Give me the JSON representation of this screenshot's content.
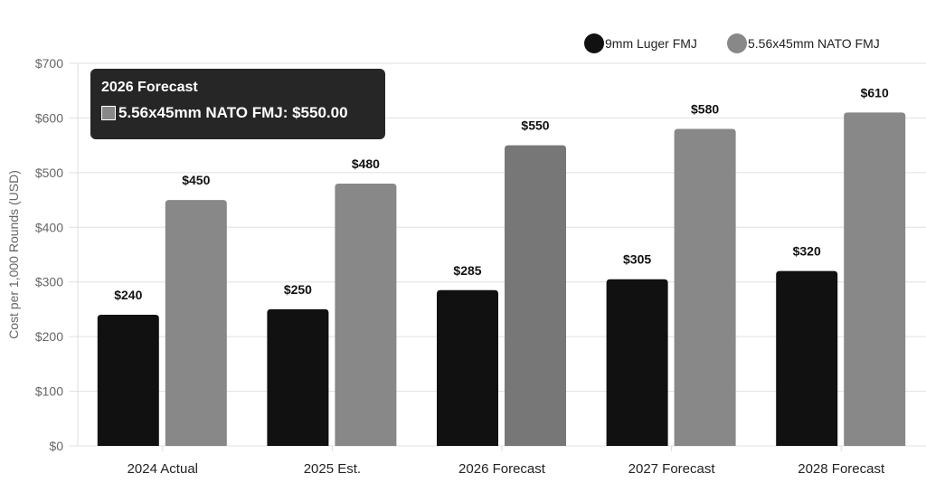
{
  "chart_data": {
    "type": "bar",
    "categories": [
      "2024 Actual",
      "2025 Est.",
      "2026 Forecast",
      "2027 Forecast",
      "2028 Forecast"
    ],
    "series": [
      {
        "name": "9mm Luger FMJ",
        "values": [
          240,
          250,
          285,
          305,
          320
        ],
        "color": "#111111"
      },
      {
        "name": "5.56x45mm NATO FMJ",
        "values": [
          450,
          480,
          550,
          580,
          610
        ],
        "color": "#888888"
      }
    ],
    "data_labels": [
      [
        "$240",
        "$250",
        "$285",
        "$305",
        "$320"
      ],
      [
        "$450",
        "$480",
        "$550",
        "$580",
        "$610"
      ]
    ],
    "ylabel": "Cost per 1,000 Rounds (USD)",
    "ylim": [
      0,
      700
    ],
    "yticks": [
      "$0",
      "$100",
      "$200",
      "$300",
      "$400",
      "$500",
      "$600",
      "$700"
    ],
    "grid": true,
    "legend": "top-right",
    "highlight_color": "#777777"
  },
  "tooltip": {
    "title": "2026 Forecast",
    "body": "5.56x45mm NATO FMJ: $550.00",
    "swatch_color": "#888888"
  }
}
